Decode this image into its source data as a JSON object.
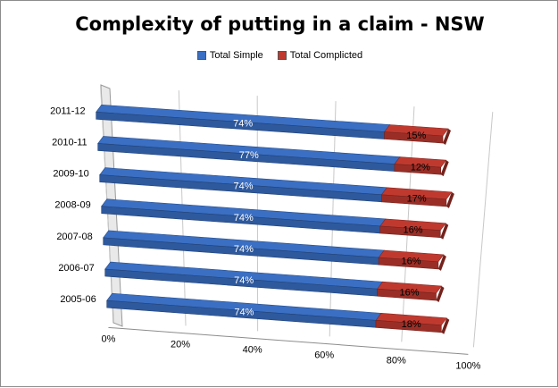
{
  "chart_data": {
    "type": "bar",
    "orientation": "horizontal",
    "stacked": true,
    "style": "3d",
    "title": "Complexity of putting in a claim - NSW",
    "categories": [
      "2011-12",
      "2010-11",
      "2009-10",
      "2008-09",
      "2007-08",
      "2006-07",
      "2005-06"
    ],
    "series": [
      {
        "name": "Total Simple",
        "values": [
          74,
          77,
          74,
          74,
          74,
          74,
          74
        ],
        "labels": [
          "74%",
          "77%",
          "74%",
          "74%",
          "74%",
          "74%",
          "74%"
        ],
        "color": "#3a6fc4"
      },
      {
        "name": "Total Complicted",
        "values": [
          15,
          12,
          17,
          16,
          16,
          16,
          18
        ],
        "labels": [
          "15%",
          "12%",
          "17%",
          "16%",
          "16%",
          "16%",
          "18%"
        ],
        "color": "#c0392f"
      }
    ],
    "axis": {
      "ticks": [
        "0%",
        "20%",
        "40%",
        "60%",
        "80%",
        "100%"
      ],
      "range": [
        0,
        100
      ]
    },
    "legend_position": "top",
    "grid": true
  }
}
